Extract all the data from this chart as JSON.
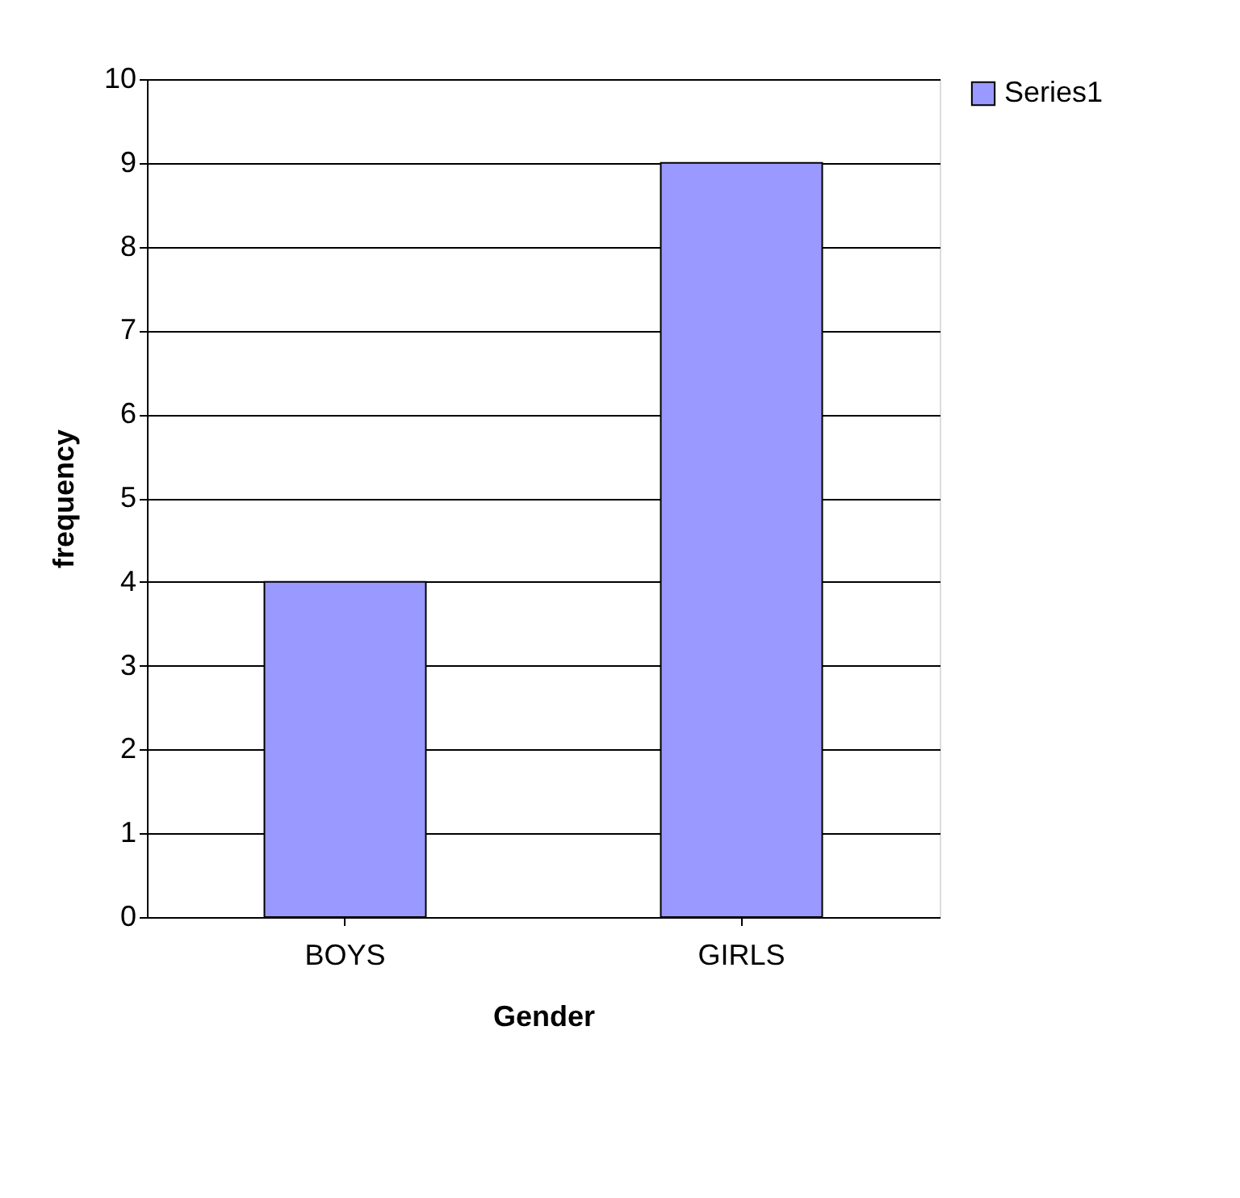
{
  "chart_data": {
    "type": "bar",
    "xlabel": "Gender",
    "ylabel": "frequency",
    "categories": [
      "BOYS",
      "GIRLS"
    ],
    "series": [
      {
        "name": "Series1",
        "color": "#9999ff",
        "values": [
          4,
          9
        ]
      }
    ],
    "ylim": [
      0,
      10
    ],
    "yticks": [
      0,
      1,
      2,
      3,
      4,
      5,
      6,
      7,
      8,
      9,
      10
    ],
    "grid": "y",
    "legend": "right"
  }
}
